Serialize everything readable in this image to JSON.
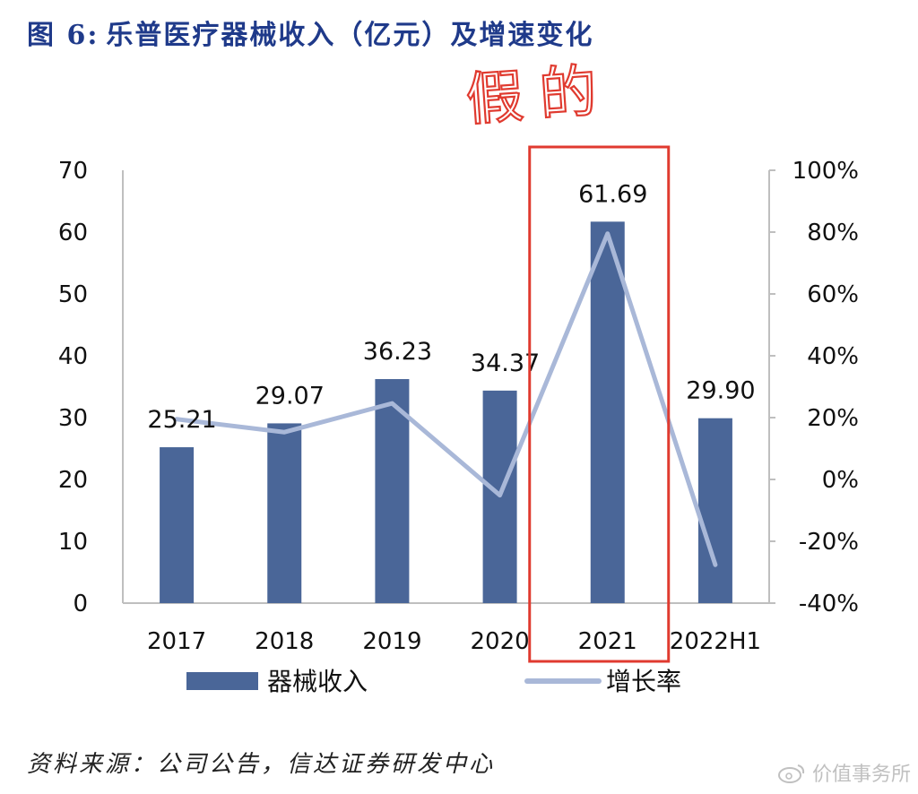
{
  "header": {
    "figure_label": "图 6:",
    "title_text": "乐普医疗器械收入（亿元）及增速变化"
  },
  "annotation": {
    "handwritten_text": "假的",
    "color": "#e03a2f",
    "highlighted_category": "2021"
  },
  "chart_data": {
    "type": "bar+line",
    "title": "乐普医疗器械收入（亿元）及增速变化",
    "categories": [
      "2017",
      "2018",
      "2019",
      "2020",
      "2021",
      "2022H1"
    ],
    "series": [
      {
        "name": "器械收入",
        "type": "bar",
        "axis": "left",
        "color": "#4a6698",
        "values": [
          25.21,
          29.07,
          36.23,
          34.37,
          61.69,
          29.9
        ],
        "labels": [
          "25.21",
          "29.07",
          "36.23",
          "34.37",
          "61.69",
          "29.90"
        ]
      },
      {
        "name": "增长率",
        "type": "line",
        "axis": "right",
        "color": "#a9b8d8",
        "values": [
          19.5,
          15.3,
          24.6,
          -5.1,
          79.5,
          -27.6
        ]
      }
    ],
    "y_left": {
      "ylim": [
        0,
        70
      ],
      "ticks": [
        "0",
        "10",
        "20",
        "30",
        "40",
        "50",
        "60",
        "70"
      ]
    },
    "y_right": {
      "ylim": [
        -40,
        100
      ],
      "ticks": [
        "-40%",
        "-20%",
        "0%",
        "20%",
        "40%",
        "60%",
        "80%",
        "100%"
      ]
    },
    "legend": {
      "position": "bottom",
      "items": [
        "器械收入",
        "增长率"
      ]
    }
  },
  "source": {
    "text": "资料来源：公司公告，信达证券研发中心"
  },
  "watermark": {
    "text": "价值事务所"
  }
}
